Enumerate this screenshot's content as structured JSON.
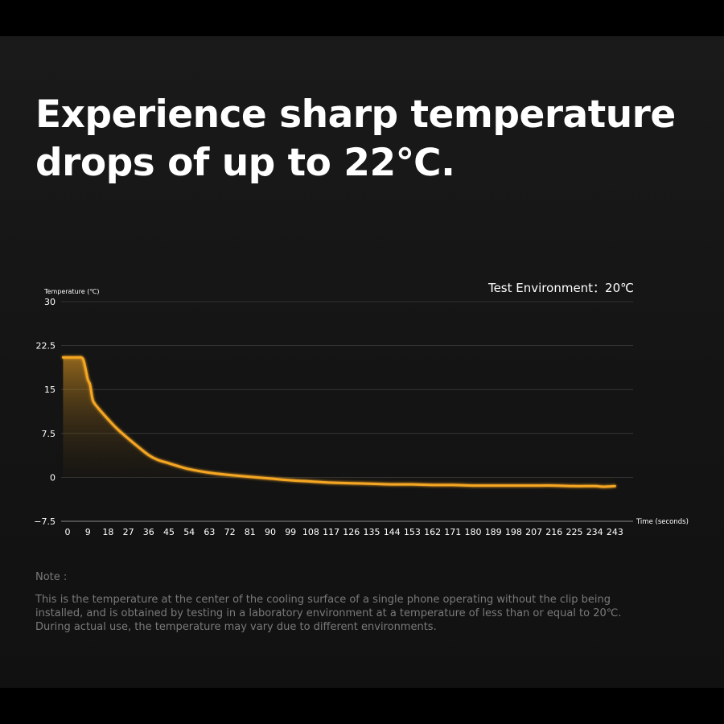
{
  "headline": "Experience sharp temperature drops of up to 22℃.",
  "note": {
    "label": "Note :",
    "text": "This is the temperature at the center of the cooling surface of a single phone operating without the clip being installed, and is obtained by testing in a laboratory environment at a temperature of less than or equal to 20℃. During actual use, the temperature may vary due to different environments."
  },
  "colors": {
    "line": "#f5a623",
    "background": "#141414",
    "text": "#ffffff",
    "muted": "#7a7a7a"
  },
  "chart_data": {
    "type": "area",
    "title": "",
    "annotation": "Test Environment：20℃",
    "ylabel": "Temperature (℃)",
    "xlabel": "Time (seconds)",
    "ylim": [
      -7.5,
      30
    ],
    "yticks": [
      30,
      22.5,
      15,
      7.5,
      0,
      -7.5
    ],
    "ytick_labels": [
      "30",
      "22.5",
      "15",
      "7.5",
      "0",
      "−7.5"
    ],
    "xlim": [
      0,
      250
    ],
    "xticks": [
      0,
      9,
      18,
      27,
      36,
      45,
      54,
      63,
      72,
      81,
      90,
      99,
      108,
      117,
      126,
      135,
      144,
      153,
      162,
      171,
      180,
      189,
      198,
      207,
      216,
      225,
      234,
      243
    ],
    "grid": true,
    "series": [
      {
        "x": [
          -2,
          0,
          3,
          5,
          6,
          7,
          8,
          9,
          10,
          11,
          12,
          15,
          18,
          22,
          27,
          32,
          36,
          40,
          45,
          54,
          63,
          72,
          81,
          90,
          99,
          108,
          117,
          126,
          135,
          144,
          153,
          162,
          171,
          180,
          189,
          198,
          207,
          216,
          225,
          234,
          238,
          243
        ],
        "y": [
          20.5,
          20.5,
          20.5,
          20.5,
          20.5,
          20.1,
          18.5,
          16.7,
          15.8,
          13.5,
          12.6,
          11.2,
          9.9,
          8.3,
          6.6,
          5.0,
          3.8,
          3.0,
          2.4,
          1.4,
          0.8,
          0.4,
          0.1,
          -0.2,
          -0.5,
          -0.7,
          -0.9,
          -1.0,
          -1.1,
          -1.2,
          -1.2,
          -1.3,
          -1.3,
          -1.4,
          -1.4,
          -1.4,
          -1.4,
          -1.4,
          -1.5,
          -1.5,
          -1.6,
          -1.5
        ]
      }
    ]
  }
}
